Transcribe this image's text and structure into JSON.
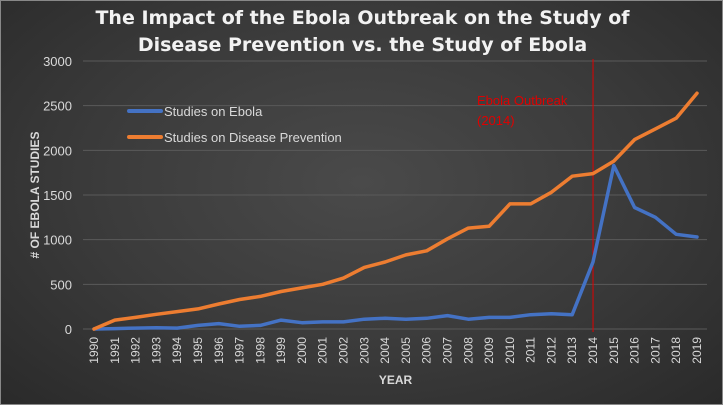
{
  "chart_data": {
    "type": "line",
    "title_line1": "The Impact of the Ebola Outbreak on the Study of",
    "title_line2": "Disease Prevention vs. the Study of Ebola",
    "xlabel": "YEAR",
    "ylabel": "# OF EBOLA STUDIES",
    "ylim": [
      0,
      3000
    ],
    "yticks": [
      0,
      500,
      1000,
      1500,
      2000,
      2500,
      3000
    ],
    "grid": true,
    "legend": "top-left",
    "categories": [
      "1990",
      "1991",
      "1992",
      "1993",
      "1994",
      "1995",
      "1996",
      "1997",
      "1998",
      "1999",
      "2000",
      "2001",
      "2002",
      "2003",
      "2004",
      "2005",
      "2006",
      "2007",
      "2008",
      "2009",
      "2010",
      "2011",
      "2012",
      "2013",
      "2014",
      "2015",
      "2016",
      "2017",
      "2018",
      "2019"
    ],
    "series": [
      {
        "name": "Studies on Ebola",
        "color": "#4472c4",
        "values": [
          0,
          5,
          10,
          15,
          10,
          40,
          60,
          30,
          40,
          100,
          70,
          80,
          80,
          110,
          120,
          110,
          120,
          150,
          110,
          130,
          130,
          160,
          170,
          160,
          750,
          1830,
          1360,
          1250,
          1060,
          1030
        ]
      },
      {
        "name": "Studies on Disease Prevention",
        "color": "#ed7d31",
        "values": [
          0,
          100,
          130,
          165,
          195,
          225,
          280,
          330,
          365,
          420,
          460,
          500,
          570,
          690,
          750,
          830,
          875,
          1010,
          1130,
          1150,
          1400,
          1400,
          1530,
          1710,
          1740,
          1880,
          2120,
          2240,
          2360,
          2640
        ]
      }
    ],
    "annotation": {
      "x": "2014",
      "line1": "Ebola Outbreak",
      "line2": "(2014)",
      "color": "#e00000"
    }
  }
}
